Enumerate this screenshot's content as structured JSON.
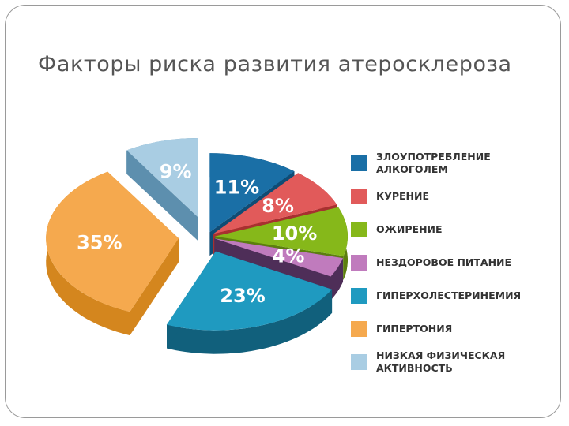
{
  "title": "Факторы риска развития атеросклероза",
  "chart_data": {
    "type": "pie",
    "title": "Факторы риска развития атеросклероза",
    "slices": [
      {
        "label": "ЗЛОУПОТРЕБЛЕНИЕ АЛКОГОЛЕМ",
        "value": 11,
        "display": "11%",
        "color": "#1a6fa6",
        "side": "#0f4c75"
      },
      {
        "label": "КУРЕНИЕ",
        "value": 8,
        "display": "8%",
        "color": "#e15a5a",
        "side": "#a83030"
      },
      {
        "label": "ОЖИРЕНИЕ",
        "value": 10,
        "display": "10%",
        "color": "#86b81a",
        "side": "#5c7f0e"
      },
      {
        "label": "НЕЗДОРОВОЕ ПИТАНИЕ",
        "value": 4,
        "display": "4%",
        "color": "#c07bbd",
        "side": "#4e2e58"
      },
      {
        "label": "ГИПЕРХОЛЕСТЕРИНЕМИЯ",
        "value": 23,
        "display": "23%",
        "color": "#1f9ac0",
        "side": "#11607c"
      },
      {
        "label": "ГИПЕРТОНИЯ",
        "value": 35,
        "display": "35%",
        "color": "#f5a94e",
        "side": "#d4861e"
      },
      {
        "label": "НИЗКАЯ ФИЗИЧЕСКАЯ АКТИВНОСТЬ",
        "value": 9,
        "display": "9%",
        "color": "#a9cde3",
        "side": "#5d8fae"
      }
    ],
    "legend_position": "right"
  }
}
